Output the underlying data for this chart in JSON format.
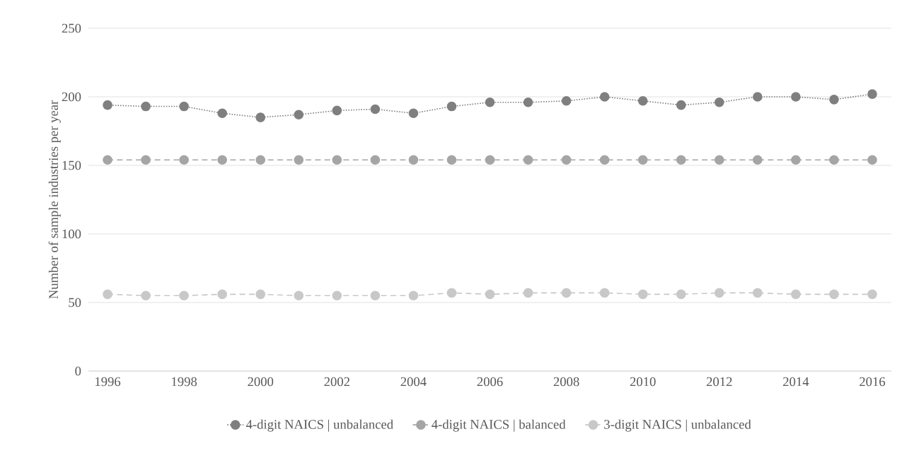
{
  "chart_data": {
    "type": "line",
    "ylabel": "Number of sample industries per year",
    "x": [
      1996,
      1997,
      1998,
      1999,
      2000,
      2001,
      2002,
      2003,
      2004,
      2005,
      2006,
      2007,
      2008,
      2009,
      2010,
      2011,
      2012,
      2013,
      2014,
      2015,
      2016
    ],
    "xlim": [
      1995.5,
      2016.5
    ],
    "xticks": [
      1996,
      1998,
      2000,
      2002,
      2004,
      2006,
      2008,
      2010,
      2012,
      2014,
      2016
    ],
    "ylim": [
      0,
      250
    ],
    "yticks": [
      0,
      50,
      100,
      150,
      200,
      250
    ],
    "grid": "y",
    "legend": "bottom",
    "marker": "circle",
    "series": [
      {
        "name": "4-digit NAICS | unbalanced",
        "color": "#7f7f7f",
        "line_style": "dotted",
        "values": [
          194,
          193,
          193,
          188,
          185,
          187,
          190,
          191,
          188,
          193,
          196,
          196,
          197,
          200,
          197,
          194,
          196,
          200,
          200,
          198,
          202
        ]
      },
      {
        "name": "4-digit NAICS | balanced",
        "color": "#a5a5a5",
        "line_style": "dashed",
        "values": [
          154,
          154,
          154,
          154,
          154,
          154,
          154,
          154,
          154,
          154,
          154,
          154,
          154,
          154,
          154,
          154,
          154,
          154,
          154,
          154,
          154
        ]
      },
      {
        "name": "3-digit NAICS | unbalanced",
        "color": "#c8c8c8",
        "line_style": "dashed",
        "values": [
          56,
          55,
          55,
          56,
          56,
          55,
          55,
          55,
          55,
          57,
          56,
          57,
          57,
          57,
          56,
          56,
          57,
          57,
          56,
          56,
          56
        ]
      }
    ]
  }
}
